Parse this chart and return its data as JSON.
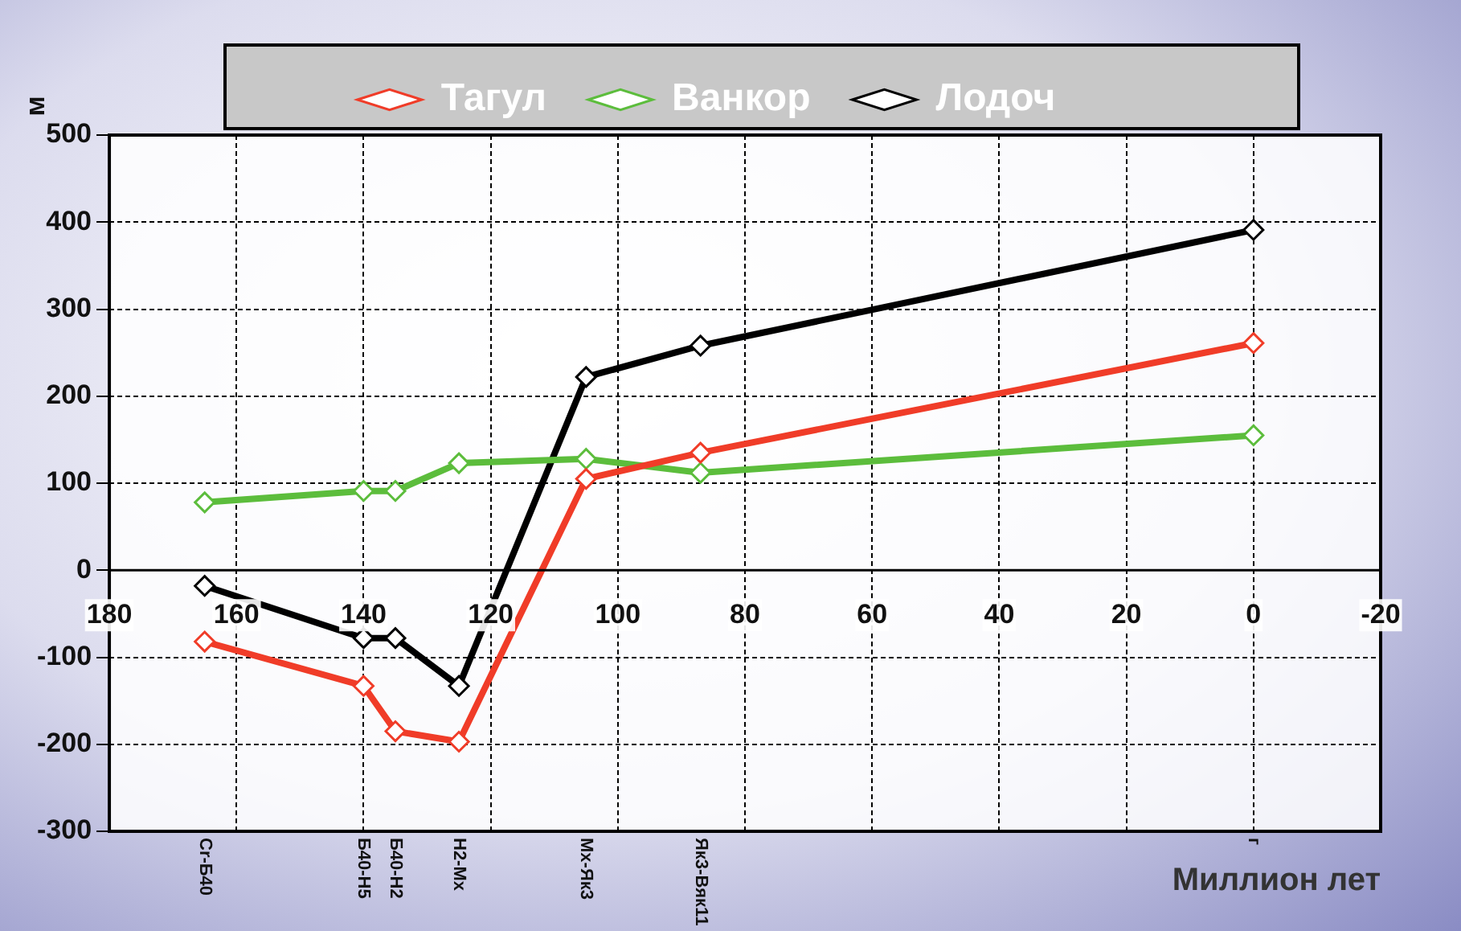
{
  "chart_data": {
    "type": "line",
    "xlabel": "Миллион лет",
    "ylabel": "м",
    "x": [
      165,
      140,
      135,
      125,
      105,
      87,
      0
    ],
    "series": [
      {
        "name": "Тагул",
        "color": "#f03c28",
        "values": [
          -82,
          -133,
          -185,
          -197,
          105,
          135,
          261
        ]
      },
      {
        "name": "Ванкор",
        "color": "#5cbd3c",
        "values": [
          78,
          91,
          91,
          123,
          128,
          112,
          155
        ]
      },
      {
        "name": "Лодоч",
        "color": "#000000",
        "values": [
          -18,
          -78,
          -78,
          -133,
          222,
          258,
          391
        ]
      }
    ],
    "xlim": [
      180,
      -20
    ],
    "xticks": [
      180,
      160,
      140,
      120,
      100,
      80,
      60,
      40,
      20,
      0,
      -20
    ],
    "ylim": [
      -300,
      500
    ],
    "yticks": [
      -300,
      -200,
      -100,
      0,
      100,
      200,
      300,
      400,
      500
    ],
    "grid": true,
    "legend": "top",
    "marker": "diamond",
    "line_style": "solid",
    "annotations": [
      "Cr-Б40",
      "Б40-Н5",
      "Б40-Н2",
      "Н2-Мх",
      "Мх-Як3",
      "Як3-Вяк11",
      "г"
    ]
  }
}
